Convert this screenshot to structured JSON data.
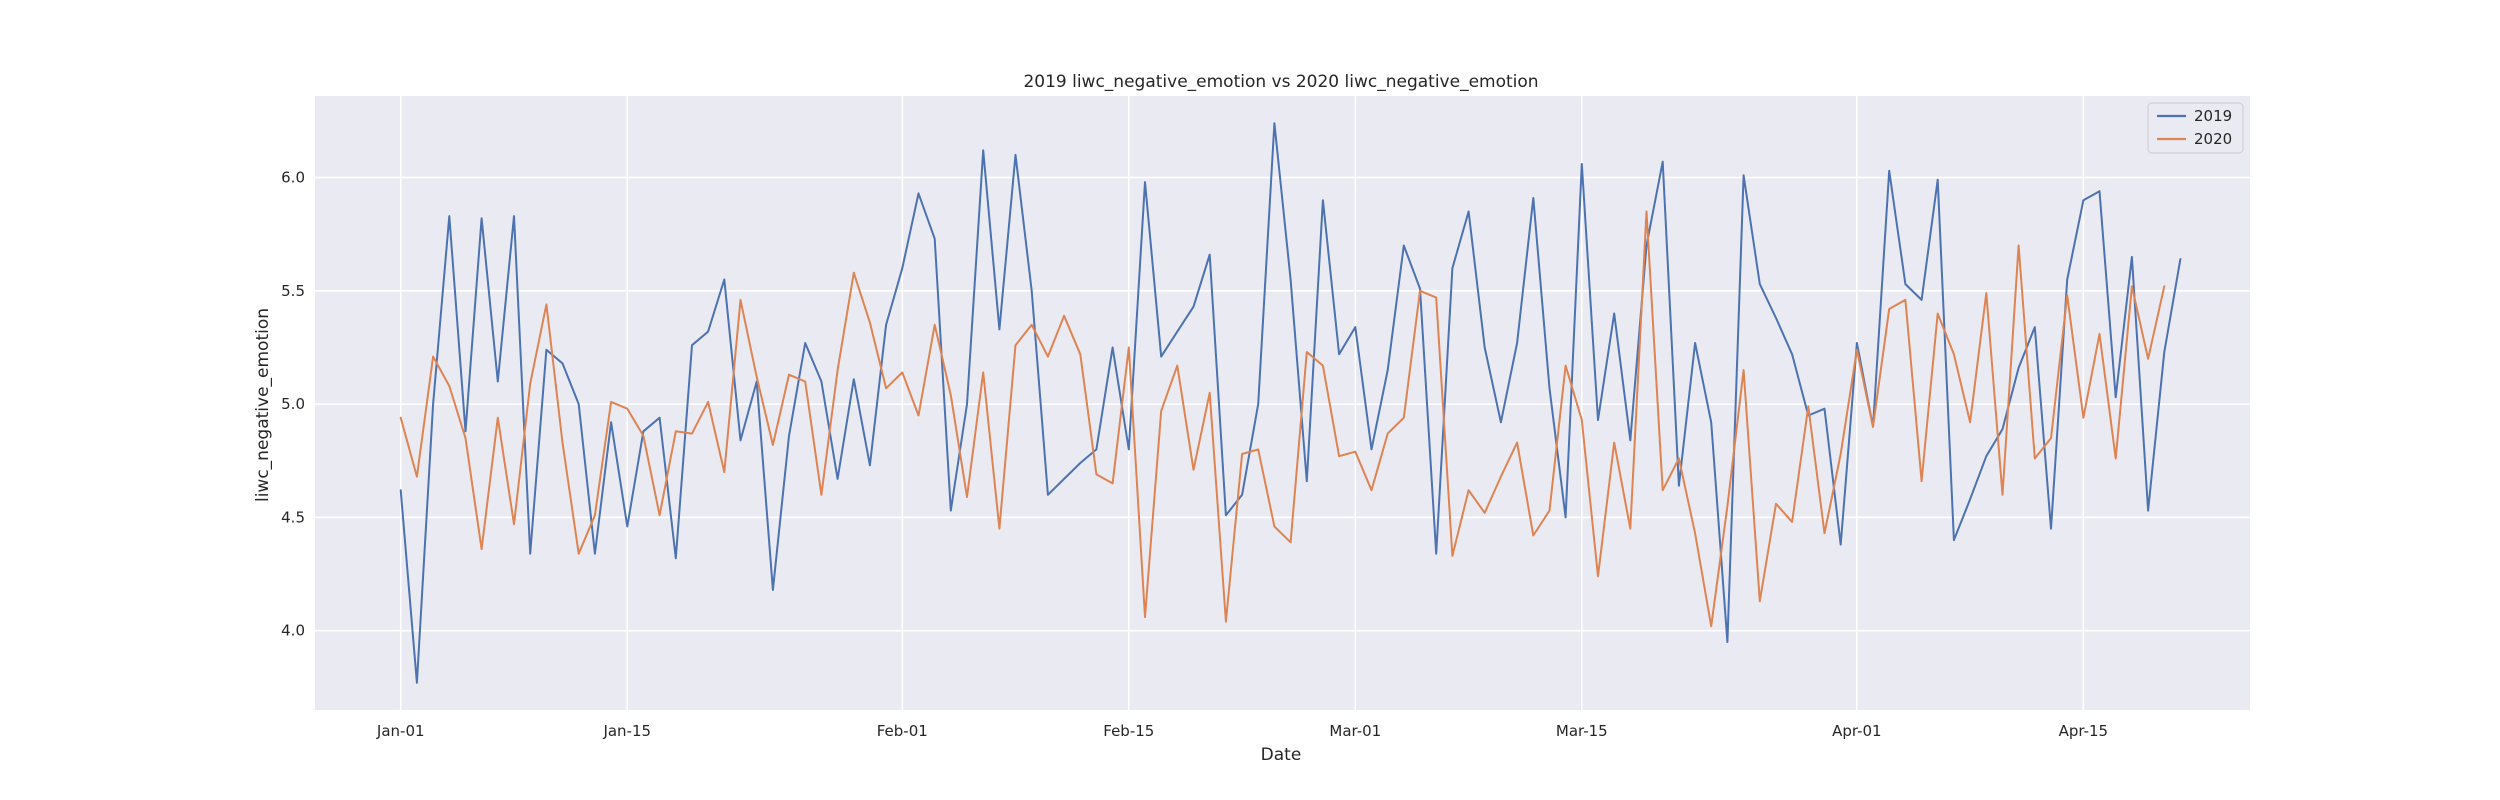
{
  "chart_data": {
    "type": "line",
    "title": "2019 liwc_negative_emotion vs 2020 liwc_negative_emotion",
    "xlabel": "Date",
    "ylabel": "liwc_negative_emotion",
    "x_start": "2019-01-01",
    "x": {
      "ticks": [
        {
          "day": 0,
          "label": "Jan-01"
        },
        {
          "day": 14,
          "label": "Jan-15"
        },
        {
          "day": 31,
          "label": "Feb-01"
        },
        {
          "day": 45,
          "label": "Feb-15"
        },
        {
          "day": 59,
          "label": "Mar-01"
        },
        {
          "day": 73,
          "label": "Mar-15"
        },
        {
          "day": 90,
          "label": "Apr-01"
        },
        {
          "day": 104,
          "label": "Apr-15"
        }
      ],
      "xlim": [
        -5.3,
        114.3
      ]
    },
    "y": {
      "ticks": [
        {
          "value": 4.0,
          "label": "4.0"
        },
        {
          "value": 4.5,
          "label": "4.5"
        },
        {
          "value": 5.0,
          "label": "5.0"
        },
        {
          "value": 5.5,
          "label": "5.5"
        },
        {
          "value": 6.0,
          "label": "6.0"
        }
      ],
      "ylim": [
        3.65,
        6.36
      ]
    },
    "grid": true,
    "legend_position": "top-right",
    "background_color": "#eaeaf2",
    "series": [
      {
        "name": "2019",
        "color": "#4c72b0",
        "values": [
          4.62,
          3.77,
          5.0,
          5.83,
          4.88,
          5.82,
          5.1,
          5.83,
          4.34,
          5.24,
          5.18,
          5.0,
          4.34,
          4.92,
          4.46,
          4.88,
          4.94,
          4.32,
          5.26,
          5.32,
          5.55,
          4.84,
          5.1,
          4.18,
          4.86,
          5.27,
          5.1,
          4.67,
          5.11,
          4.73,
          5.35,
          5.6,
          5.93,
          5.73,
          4.53,
          5.0,
          6.12,
          5.33,
          6.1,
          5.5,
          4.6,
          4.67,
          4.74,
          4.8,
          5.25,
          4.8,
          5.98,
          5.21,
          5.32,
          5.43,
          5.66,
          4.51,
          4.6,
          5.0,
          6.24,
          5.55,
          4.66,
          5.9,
          5.22,
          5.34,
          4.8,
          5.15,
          5.7,
          5.51,
          4.34,
          5.6,
          5.85,
          5.25,
          4.92,
          5.27,
          5.91,
          5.07,
          4.5,
          6.06,
          4.93,
          5.4,
          4.84,
          5.7,
          6.07,
          4.64,
          5.27,
          4.92,
          3.95,
          6.01,
          5.53,
          5.38,
          5.22,
          4.95,
          4.98,
          4.38,
          5.27,
          4.9,
          6.03,
          5.53,
          5.46,
          5.99,
          4.4,
          4.58,
          4.77,
          4.89,
          5.16,
          5.34,
          4.45,
          5.55,
          5.9,
          5.94,
          5.03,
          5.65,
          4.53,
          5.23,
          5.64
        ]
      },
      {
        "name": "2020",
        "color": "#dd8452",
        "values": [
          4.94,
          4.68,
          5.21,
          5.08,
          4.85,
          4.36,
          4.94,
          4.47,
          5.09,
          5.44,
          4.83,
          4.34,
          4.51,
          5.01,
          4.98,
          4.86,
          4.51,
          4.88,
          4.87,
          5.01,
          4.7,
          5.46,
          5.12,
          4.82,
          5.13,
          5.1,
          4.6,
          5.15,
          5.58,
          5.36,
          5.07,
          5.14,
          4.95,
          5.35,
          5.04,
          4.59,
          5.14,
          4.45,
          5.26,
          5.35,
          5.21,
          5.39,
          5.22,
          4.69,
          4.65,
          5.25,
          4.06,
          4.97,
          5.17,
          4.71,
          5.05,
          4.04,
          4.78,
          4.8,
          4.46,
          4.39,
          5.23,
          5.17,
          4.77,
          4.79,
          4.62,
          4.87,
          4.94,
          5.5,
          5.47,
          4.33,
          4.62,
          4.52,
          4.68,
          4.83,
          4.42,
          4.53,
          5.17,
          4.93,
          4.24,
          4.83,
          4.45,
          5.85,
          4.62,
          4.76,
          4.43,
          4.02,
          4.55,
          5.15,
          4.13,
          4.56,
          4.48,
          4.99,
          4.43,
          4.78,
          5.24,
          4.9,
          5.42,
          5.46,
          4.66,
          5.4,
          5.22,
          4.92,
          5.49,
          4.6,
          5.7,
          4.76,
          4.85,
          5.48,
          4.94,
          5.31,
          4.76,
          5.52,
          5.2,
          5.52
        ]
      }
    ]
  }
}
